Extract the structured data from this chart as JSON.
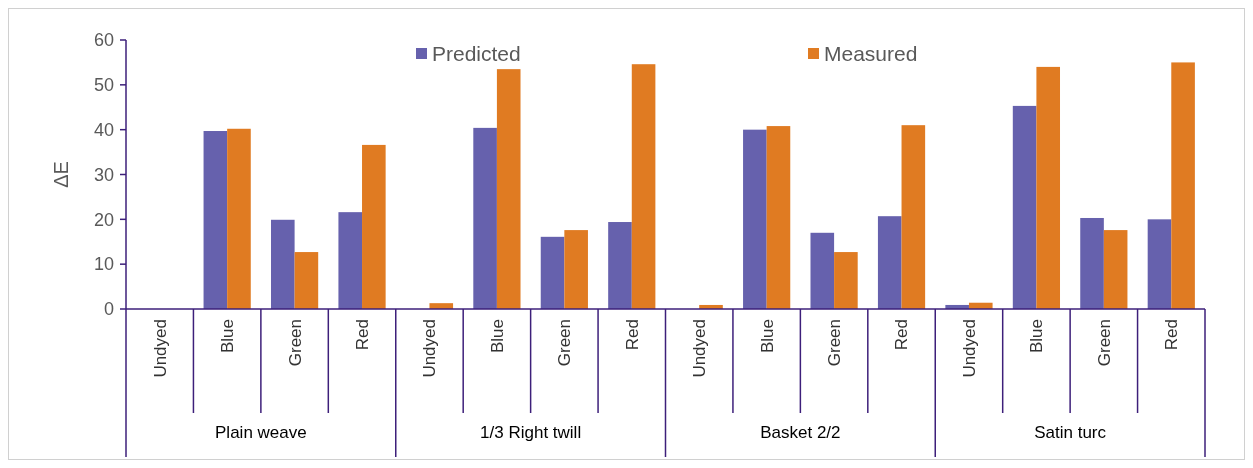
{
  "chart_data": {
    "type": "bar",
    "ylabel": "ΔE",
    "categories": [
      "Undyed",
      "Blue",
      "Green",
      "Red",
      "Undyed",
      "Blue",
      "Green",
      "Red",
      "Undyed",
      "Blue",
      "Green",
      "Red",
      "Undyed",
      "Blue",
      "Green",
      "Red"
    ],
    "annotations": [
      "Plain weave",
      "1/3 Right twill",
      "Basket 2/2",
      "Satin turc"
    ],
    "series": [
      {
        "name": "Predicted",
        "color": "#6661ad",
        "values": [
          0,
          39.7,
          19.9,
          21.6,
          0,
          40.4,
          16.1,
          19.4,
          0,
          40,
          17,
          20.7,
          0.9,
          45.3,
          20.3,
          20
        ]
      },
      {
        "name": "Measured",
        "color": "#e07b22",
        "values": [
          0,
          40.2,
          12.7,
          36.6,
          1.3,
          53.5,
          17.6,
          54.6,
          0.9,
          40.8,
          12.7,
          41,
          1.4,
          54,
          17.6,
          55
        ]
      }
    ],
    "ylim": [
      0,
      60
    ],
    "yticks": [
      0,
      10,
      20,
      30,
      40,
      50,
      60
    ],
    "grid": false,
    "legend": "top"
  }
}
